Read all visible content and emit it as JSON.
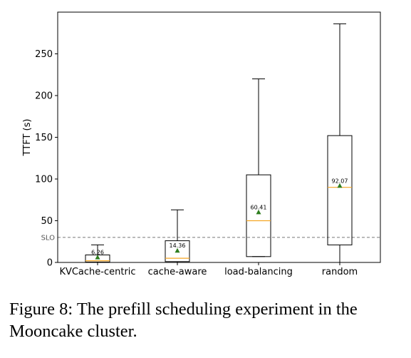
{
  "chart_data": {
    "type": "box",
    "ylabel": "TTFT (s)",
    "xlabel": "",
    "ylim": [
      0,
      300
    ],
    "yticks": [
      0,
      50,
      100,
      150,
      200,
      250
    ],
    "grid": false,
    "categories": [
      "KVCache-centric",
      "cache-aware",
      "load-balancing",
      "random"
    ],
    "boxes": [
      {
        "category": "KVCache-centric",
        "whisker_low": 0,
        "q1": 0.5,
        "median": 2,
        "q3": 9,
        "whisker_high": 21,
        "mean": 6.26,
        "mean_label": "6.26"
      },
      {
        "category": "cache-aware",
        "whisker_low": 0,
        "q1": 1,
        "median": 5,
        "q3": 26,
        "whisker_high": 63,
        "mean": 14.36,
        "mean_label": "14.36"
      },
      {
        "category": "load-balancing",
        "whisker_low": 7,
        "q1": 7,
        "median": 50,
        "q3": 105,
        "whisker_high": 220,
        "mean": 60.41,
        "mean_label": "60.41"
      },
      {
        "category": "random",
        "whisker_low": 0,
        "q1": 21,
        "median": 90,
        "q3": 152,
        "whisker_high": 286,
        "mean": 92.07,
        "mean_label": "92.07"
      }
    ],
    "reference_line": {
      "label": "SLO",
      "value": 30,
      "style": "dashed"
    },
    "colors": {
      "box": "#000000",
      "median": "#f5a623",
      "mean_marker": "#2e7d1e",
      "slo_line": "#777777"
    }
  },
  "caption": "Figure 8: The prefill scheduling experiment in the Mooncake cluster."
}
